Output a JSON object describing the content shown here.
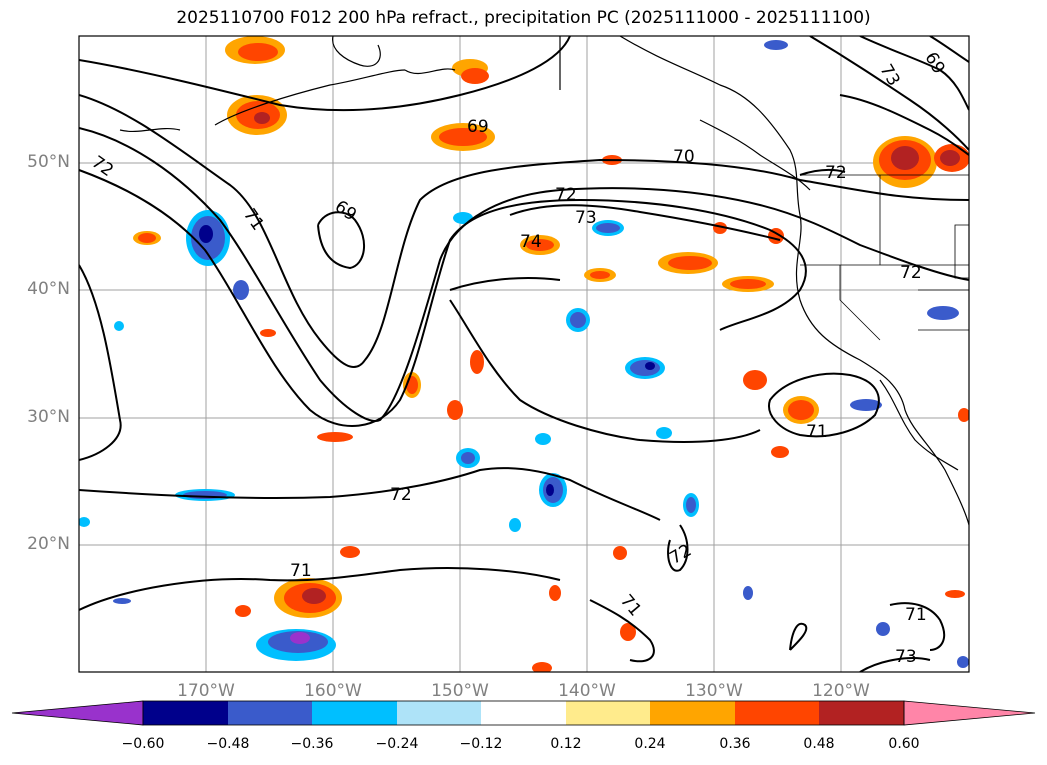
{
  "title": "2025110700 F012 200 hPa refract., precipitation PC (2025111000 - 2025111100)",
  "map": {
    "projection": "plate carree",
    "lon_range": [
      -180,
      -110
    ],
    "lat_range": [
      10,
      60
    ],
    "lat_labels": [
      "50°N",
      "40°N",
      "30°N",
      "20°N"
    ],
    "lon_labels": [
      "170°W",
      "160°W",
      "150°W",
      "140°W",
      "130°W",
      "120°W"
    ],
    "contour_labels": [
      "69",
      "70",
      "72",
      "73",
      "74",
      "71",
      "72",
      "69",
      "72",
      "72",
      "71",
      "71",
      "71",
      "71",
      "73",
      "72",
      "73",
      "69",
      "72"
    ],
    "icon": "map-contour-plot"
  },
  "colorbar": {
    "tick_labels": [
      "−0.60",
      "−0.48",
      "−0.36",
      "−0.24",
      "−0.12",
      "0.12",
      "0.24",
      "0.36",
      "0.48",
      "0.60"
    ],
    "colors": [
      "#9932CC",
      "#00008B",
      "#3A5BCB",
      "#00BFFF",
      "#AEE3F8",
      "#FFFFFF",
      "#FFEB8C",
      "#FFA500",
      "#FF4500",
      "#B22222",
      "#FF85A8"
    ]
  }
}
